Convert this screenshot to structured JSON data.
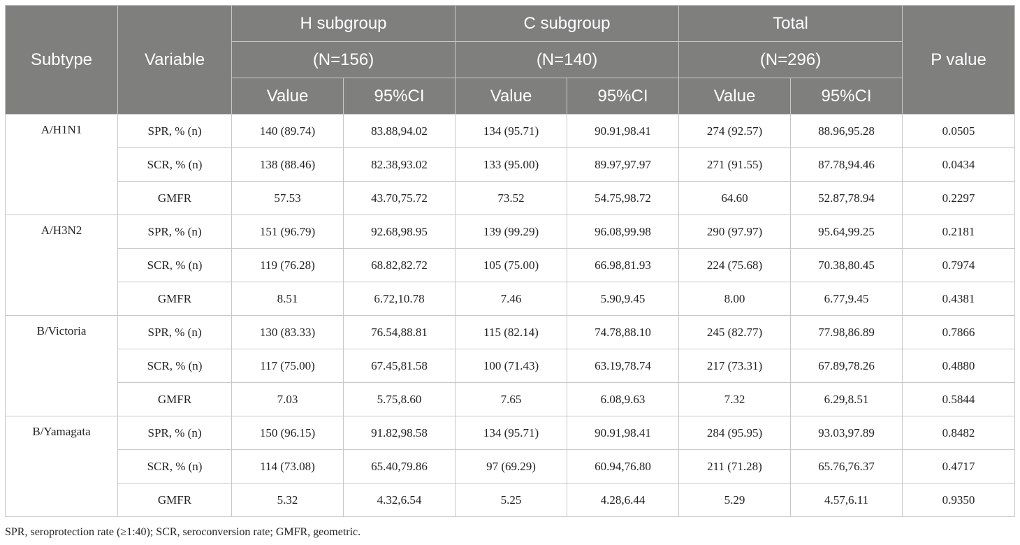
{
  "header": {
    "subtype": "Subtype",
    "variable": "Variable",
    "p_value": "P value",
    "groups": [
      {
        "name": "H subgroup",
        "n": "(N=156)"
      },
      {
        "name": "C subgroup",
        "n": "(N=140)"
      },
      {
        "name": "Total",
        "n": "(N=296)"
      }
    ],
    "value_label": "Value",
    "ci_label": "95%CI"
  },
  "rows": [
    {
      "subtype": "A/H1N1",
      "variable": "SPR, % (n)",
      "cells": [
        "140 (89.74)",
        "83.88,94.02",
        "134 (95.71)",
        "90.91,98.41",
        "274 (92.57)",
        "88.96,95.28"
      ],
      "p": "0.0505"
    },
    {
      "subtype": "",
      "variable": "SCR, % (n)",
      "cells": [
        "138 (88.46)",
        "82.38,93.02",
        "133 (95.00)",
        "89.97,97.97",
        "271 (91.55)",
        "87.78,94.46"
      ],
      "p": "0.0434"
    },
    {
      "subtype": "",
      "variable": "GMFR",
      "cells": [
        "57.53",
        "43.70,75.72",
        "73.52",
        "54.75,98.72",
        "64.60",
        "52.87,78.94"
      ],
      "p": "0.2297"
    },
    {
      "subtype": "A/H3N2",
      "variable": "SPR, % (n)",
      "cells": [
        "151 (96.79)",
        "92.68,98.95",
        "139 (99.29)",
        "96.08,99.98",
        "290 (97.97)",
        "95.64,99.25"
      ],
      "p": "0.2181"
    },
    {
      "subtype": "",
      "variable": "SCR, % (n)",
      "cells": [
        "119 (76.28)",
        "68.82,82.72",
        "105 (75.00)",
        "66.98,81.93",
        "224 (75.68)",
        "70.38,80.45"
      ],
      "p": "0.7974"
    },
    {
      "subtype": "",
      "variable": "GMFR",
      "cells": [
        "8.51",
        "6.72,10.78",
        "7.46",
        "5.90,9.45",
        "8.00",
        "6.77,9.45"
      ],
      "p": "0.4381"
    },
    {
      "subtype": "B/Victoria",
      "variable": "SPR, % (n)",
      "cells": [
        "130 (83.33)",
        "76.54,88.81",
        "115 (82.14)",
        "74.78,88.10",
        "245 (82.77)",
        "77.98,86.89"
      ],
      "p": "0.7866"
    },
    {
      "subtype": "",
      "variable": "SCR, % (n)",
      "cells": [
        "117 (75.00)",
        "67.45,81.58",
        "100 (71.43)",
        "63.19,78.74",
        "217 (73.31)",
        "67.89,78.26"
      ],
      "p": "0.4880"
    },
    {
      "subtype": "",
      "variable": "GMFR",
      "cells": [
        "7.03",
        "5.75,8.60",
        "7.65",
        "6.08,9.63",
        "7.32",
        "6.29,8.51"
      ],
      "p": "0.5844"
    },
    {
      "subtype": "B/Yamagata",
      "variable": "SPR, % (n)",
      "cells": [
        "150 (96.15)",
        "91.82,98.58",
        "134 (95.71)",
        "90.91,98.41",
        "284 (95.95)",
        "93.03,97.89"
      ],
      "p": "0.8482"
    },
    {
      "subtype": "",
      "variable": "SCR, % (n)",
      "cells": [
        "114 (73.08)",
        "65.40,79.86",
        "97 (69.29)",
        "60.94,76.80",
        "211 (71.28)",
        "65.76,76.37"
      ],
      "p": "0.4717"
    },
    {
      "subtype": "",
      "variable": "GMFR",
      "cells": [
        "5.32",
        "4.32,6.54",
        "5.25",
        "4.28,6.44",
        "5.29",
        "4.57,6.11"
      ],
      "p": "0.9350"
    }
  ],
  "footnote": "SPR, seroprotection rate (≥1:40); SCR, seroconversion rate; GMFR, geometric.",
  "colors": {
    "header_bg": "#7f7f7e",
    "header_text": "#ffffff",
    "border": "#c8c8c8"
  }
}
